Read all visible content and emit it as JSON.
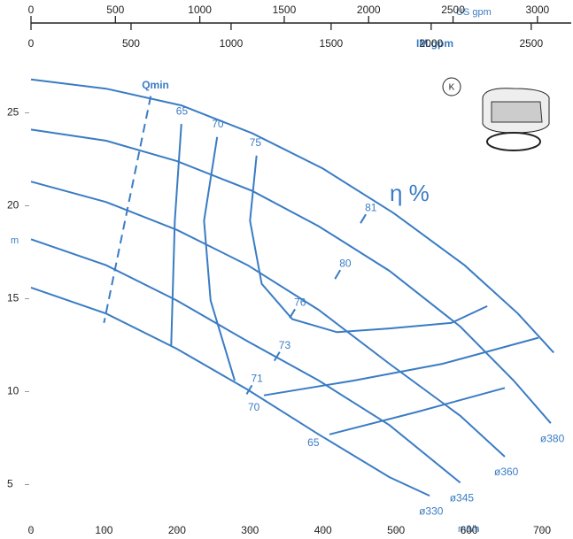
{
  "chart_data": {
    "type": "line",
    "color": "#3a7cc4",
    "xlabel": "m3/h",
    "ylabel": "m",
    "xlim": [
      0,
      740
    ],
    "ylim": [
      2.5,
      27.5
    ],
    "xticks": [
      0,
      100,
      200,
      300,
      400,
      500,
      600,
      700
    ],
    "yticks": [
      5,
      10,
      15,
      20,
      25
    ],
    "top_axes": [
      {
        "label": "US gpm",
        "lim": [
          0,
          3200
        ],
        "ticks": [
          0,
          500,
          1000,
          1500,
          2000,
          2500,
          3000
        ]
      },
      {
        "label": "IM.gpm",
        "lim": [
          0,
          2700
        ],
        "ticks": [
          0,
          500,
          1000,
          1500,
          2000,
          2500
        ]
      }
    ],
    "series": [
      {
        "x": [
          0,
          103,
          206,
          303,
          400,
          497,
          594,
          667,
          716
        ],
        "values": [
          26.8,
          26.3,
          25.4,
          23.9,
          22.0,
          19.6,
          16.8,
          14.2,
          12.1
        ]
      },
      {
        "name": "ø380",
        "x": [
          0,
          103,
          200,
          303,
          394,
          491,
          588,
          661,
          712
        ],
        "values": [
          24.1,
          23.5,
          22.4,
          20.8,
          18.9,
          16.5,
          13.5,
          10.6,
          8.3
        ]
      },
      {
        "name": "ø360",
        "x": [
          0,
          103,
          200,
          297,
          394,
          491,
          588,
          649
        ],
        "values": [
          21.3,
          20.2,
          18.7,
          16.8,
          14.4,
          11.5,
          8.7,
          6.5
        ]
      },
      {
        "name": "ø345",
        "x": [
          0,
          103,
          200,
          297,
          394,
          491,
          588
        ],
        "values": [
          18.2,
          16.8,
          14.9,
          12.7,
          10.6,
          8.2,
          5.1
        ]
      },
      {
        "name": "ø330",
        "x": [
          0,
          103,
          200,
          297,
          394,
          491,
          546
        ],
        "values": [
          15.6,
          14.2,
          12.3,
          10.1,
          7.7,
          5.4,
          4.4
        ]
      }
    ],
    "efficiency_curves": [
      {
        "name": "65",
        "x": [
          206,
          197,
          192
        ],
        "values": [
          24.4,
          19.2,
          12.5
        ]
      },
      {
        "name": "70",
        "x": [
          255,
          237,
          246,
          279
        ],
        "values": [
          23.7,
          19.2,
          14.9,
          10.6
        ]
      },
      {
        "name": "75",
        "x": [
          309,
          300,
          316,
          358,
          419,
          491,
          576,
          625
        ],
        "values": [
          22.7,
          19.2,
          15.8,
          13.9,
          13.2,
          13.4,
          13.7,
          14.6
        ]
      },
      {
        "name": "70",
        "x": [
          319,
          443,
          564,
          695
        ],
        "values": [
          9.8,
          10.6,
          11.5,
          12.9
        ]
      },
      {
        "name": "65",
        "x": [
          409,
          528,
          649
        ],
        "values": [
          7.7,
          8.9,
          10.2
        ]
      }
    ],
    "efficiency_points": [
      {
        "value": 81,
        "x": 455,
        "y": 19.3
      },
      {
        "value": 80,
        "x": 420,
        "y": 16.3
      },
      {
        "value": 76,
        "x": 358,
        "y": 14.2
      },
      {
        "value": 73,
        "x": 337,
        "y": 11.9
      },
      {
        "value": 71,
        "x": 299,
        "y": 10.1
      }
    ],
    "qmin": {
      "label": "Qmin",
      "x": [
        164,
        100
      ],
      "values": [
        25.9,
        13.7
      ]
    },
    "efficiency_label": "η %",
    "impeller_badge": "K"
  }
}
